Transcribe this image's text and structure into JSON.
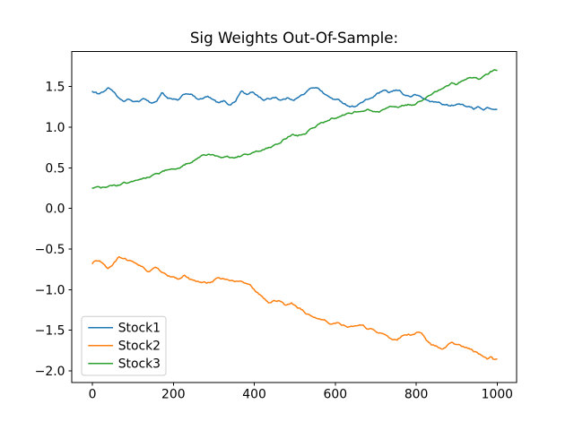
{
  "figure": {
    "background": "#ffffff"
  },
  "chart_data": {
    "type": "line",
    "title": "Sig Weights Out-Of-Sample:",
    "xlabel": "",
    "ylabel": "",
    "xlim": [
      -51,
      1048
    ],
    "ylim": [
      -2.145,
      1.931
    ],
    "grid": false,
    "axis_color": "#000000",
    "x_ticks": [
      0,
      200,
      400,
      600,
      800,
      1000
    ],
    "x_tick_labels": [
      "0",
      "200",
      "400",
      "600",
      "800",
      "1000"
    ],
    "y_ticks": [
      -2.0,
      -1.5,
      -1.0,
      -0.5,
      0.0,
      0.5,
      1.0,
      1.5
    ],
    "y_tick_labels": [
      "−2.0",
      "−1.5",
      "−1.0",
      "−0.5",
      "0.0",
      "0.5",
      "1.0",
      "1.5"
    ],
    "legend": {
      "position": "lower left",
      "border_color": "#cccccc",
      "background": "#ffffff"
    },
    "series": [
      {
        "name": "Stock1",
        "color": "#1f77b4",
        "points": [
          [
            0,
            1.44
          ],
          [
            12,
            1.41
          ],
          [
            25,
            1.44
          ],
          [
            40,
            1.49
          ],
          [
            52,
            1.45
          ],
          [
            65,
            1.34
          ],
          [
            78,
            1.31
          ],
          [
            92,
            1.33
          ],
          [
            105,
            1.3
          ],
          [
            118,
            1.32
          ],
          [
            132,
            1.34
          ],
          [
            145,
            1.3
          ],
          [
            158,
            1.32
          ],
          [
            172,
            1.43
          ],
          [
            185,
            1.37
          ],
          [
            198,
            1.34
          ],
          [
            212,
            1.32
          ],
          [
            228,
            1.39
          ],
          [
            242,
            1.41
          ],
          [
            256,
            1.35
          ],
          [
            270,
            1.34
          ],
          [
            284,
            1.37
          ],
          [
            298,
            1.32
          ],
          [
            312,
            1.28
          ],
          [
            326,
            1.31
          ],
          [
            340,
            1.27
          ],
          [
            354,
            1.33
          ],
          [
            368,
            1.45
          ],
          [
            382,
            1.4
          ],
          [
            396,
            1.43
          ],
          [
            410,
            1.38
          ],
          [
            424,
            1.34
          ],
          [
            438,
            1.35
          ],
          [
            452,
            1.38
          ],
          [
            466,
            1.34
          ],
          [
            480,
            1.36
          ],
          [
            495,
            1.35
          ],
          [
            510,
            1.38
          ],
          [
            525,
            1.42
          ],
          [
            542,
            1.48
          ],
          [
            555,
            1.5
          ],
          [
            570,
            1.43
          ],
          [
            585,
            1.37
          ],
          [
            600,
            1.34
          ],
          [
            615,
            1.31
          ],
          [
            632,
            1.27
          ],
          [
            645,
            1.26
          ],
          [
            660,
            1.3
          ],
          [
            675,
            1.33
          ],
          [
            690,
            1.36
          ],
          [
            705,
            1.41
          ],
          [
            718,
            1.44
          ],
          [
            732,
            1.41
          ],
          [
            745,
            1.43
          ],
          [
            758,
            1.44
          ],
          [
            772,
            1.39
          ],
          [
            786,
            1.38
          ],
          [
            800,
            1.4
          ],
          [
            812,
            1.36
          ],
          [
            825,
            1.33
          ],
          [
            840,
            1.31
          ],
          [
            855,
            1.3
          ],
          [
            870,
            1.28
          ],
          [
            885,
            1.26
          ],
          [
            900,
            1.27
          ],
          [
            915,
            1.28
          ],
          [
            930,
            1.25
          ],
          [
            942,
            1.23
          ],
          [
            952,
            1.27
          ],
          [
            965,
            1.22
          ],
          [
            980,
            1.24
          ],
          [
            1000,
            1.21
          ]
        ]
      },
      {
        "name": "Stock2",
        "color": "#ff7f0e",
        "points": [
          [
            0,
            -0.68
          ],
          [
            12,
            -0.65
          ],
          [
            25,
            -0.68
          ],
          [
            38,
            -0.74
          ],
          [
            52,
            -0.68
          ],
          [
            66,
            -0.6
          ],
          [
            80,
            -0.61
          ],
          [
            95,
            -0.65
          ],
          [
            110,
            -0.68
          ],
          [
            125,
            -0.72
          ],
          [
            140,
            -0.78
          ],
          [
            158,
            -0.74
          ],
          [
            172,
            -0.78
          ],
          [
            186,
            -0.82
          ],
          [
            200,
            -0.85
          ],
          [
            212,
            -0.87
          ],
          [
            226,
            -0.83
          ],
          [
            240,
            -0.88
          ],
          [
            254,
            -0.9
          ],
          [
            268,
            -0.92
          ],
          [
            282,
            -0.93
          ],
          [
            296,
            -0.9
          ],
          [
            310,
            -0.85
          ],
          [
            324,
            -0.86
          ],
          [
            338,
            -0.88
          ],
          [
            352,
            -0.9
          ],
          [
            366,
            -0.91
          ],
          [
            380,
            -0.93
          ],
          [
            394,
            -0.98
          ],
          [
            408,
            -1.04
          ],
          [
            422,
            -1.1
          ],
          [
            436,
            -1.16
          ],
          [
            450,
            -1.13
          ],
          [
            464,
            -1.13
          ],
          [
            478,
            -1.19
          ],
          [
            492,
            -1.16
          ],
          [
            506,
            -1.2
          ],
          [
            520,
            -1.25
          ],
          [
            535,
            -1.31
          ],
          [
            548,
            -1.36
          ],
          [
            562,
            -1.38
          ],
          [
            576,
            -1.38
          ],
          [
            590,
            -1.41
          ],
          [
            604,
            -1.4
          ],
          [
            618,
            -1.43
          ],
          [
            632,
            -1.44
          ],
          [
            646,
            -1.44
          ],
          [
            660,
            -1.44
          ],
          [
            674,
            -1.47
          ],
          [
            688,
            -1.49
          ],
          [
            702,
            -1.51
          ],
          [
            716,
            -1.54
          ],
          [
            730,
            -1.59
          ],
          [
            744,
            -1.62
          ],
          [
            752,
            -1.62
          ],
          [
            766,
            -1.57
          ],
          [
            780,
            -1.55
          ],
          [
            794,
            -1.56
          ],
          [
            806,
            -1.53
          ],
          [
            814,
            -1.56
          ],
          [
            824,
            -1.64
          ],
          [
            838,
            -1.69
          ],
          [
            852,
            -1.72
          ],
          [
            866,
            -1.75
          ],
          [
            878,
            -1.7
          ],
          [
            892,
            -1.68
          ],
          [
            906,
            -1.71
          ],
          [
            920,
            -1.73
          ],
          [
            934,
            -1.75
          ],
          [
            948,
            -1.78
          ],
          [
            962,
            -1.82
          ],
          [
            976,
            -1.85
          ],
          [
            984,
            -1.83
          ],
          [
            992,
            -1.87
          ],
          [
            1000,
            -1.88
          ]
        ]
      },
      {
        "name": "Stock3",
        "color": "#2ca02c",
        "points": [
          [
            0,
            0.25
          ],
          [
            30,
            0.25
          ],
          [
            60,
            0.27
          ],
          [
            90,
            0.31
          ],
          [
            120,
            0.36
          ],
          [
            150,
            0.42
          ],
          [
            180,
            0.47
          ],
          [
            210,
            0.52
          ],
          [
            235,
            0.56
          ],
          [
            258,
            0.6
          ],
          [
            275,
            0.63
          ],
          [
            300,
            0.645
          ],
          [
            320,
            0.65
          ],
          [
            345,
            0.625
          ],
          [
            360,
            0.645
          ],
          [
            380,
            0.66
          ],
          [
            405,
            0.69
          ],
          [
            435,
            0.74
          ],
          [
            465,
            0.8
          ],
          [
            480,
            0.86
          ],
          [
            495,
            0.91
          ],
          [
            508,
            0.89
          ],
          [
            525,
            0.93
          ],
          [
            540,
            0.99
          ],
          [
            560,
            1.04
          ],
          [
            580,
            1.07
          ],
          [
            600,
            1.11
          ],
          [
            620,
            1.15
          ],
          [
            640,
            1.18
          ],
          [
            660,
            1.2
          ],
          [
            680,
            1.21
          ],
          [
            700,
            1.18
          ],
          [
            720,
            1.21
          ],
          [
            740,
            1.23
          ],
          [
            760,
            1.25
          ],
          [
            780,
            1.28
          ],
          [
            800,
            1.29
          ],
          [
            815,
            1.33
          ],
          [
            830,
            1.38
          ],
          [
            845,
            1.44
          ],
          [
            860,
            1.47
          ],
          [
            875,
            1.51
          ],
          [
            890,
            1.55
          ],
          [
            900,
            1.52
          ],
          [
            915,
            1.57
          ],
          [
            930,
            1.6
          ],
          [
            945,
            1.63
          ],
          [
            957,
            1.6
          ],
          [
            970,
            1.65
          ],
          [
            985,
            1.69
          ],
          [
            1000,
            1.71
          ]
        ]
      }
    ]
  }
}
